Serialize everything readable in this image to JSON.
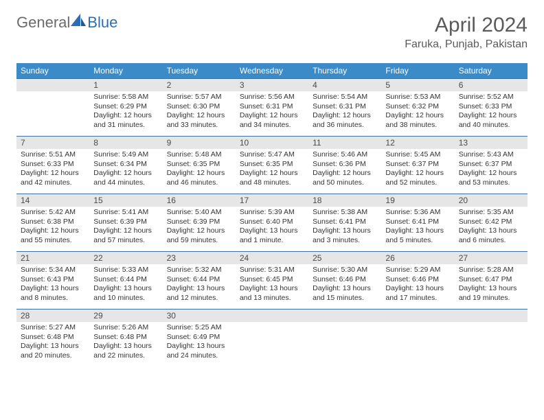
{
  "brand": {
    "word1": "General",
    "word2": "Blue"
  },
  "title": "April 2024",
  "location": "Faruka, Punjab, Pakistan",
  "colors": {
    "header_bg": "#3b8bc9",
    "header_text": "#ffffff",
    "daynum_bg": "#e6e6e6",
    "row_border": "#3b6fa0",
    "brand_gray": "#6b6b6b",
    "brand_blue": "#2a6fb5"
  },
  "weekdays": [
    "Sunday",
    "Monday",
    "Tuesday",
    "Wednesday",
    "Thursday",
    "Friday",
    "Saturday"
  ],
  "weeks": [
    [
      {
        "n": "",
        "sr": "",
        "ss": "",
        "dl": ""
      },
      {
        "n": "1",
        "sr": "Sunrise: 5:58 AM",
        "ss": "Sunset: 6:29 PM",
        "dl": "Daylight: 12 hours and 31 minutes."
      },
      {
        "n": "2",
        "sr": "Sunrise: 5:57 AM",
        "ss": "Sunset: 6:30 PM",
        "dl": "Daylight: 12 hours and 33 minutes."
      },
      {
        "n": "3",
        "sr": "Sunrise: 5:56 AM",
        "ss": "Sunset: 6:31 PM",
        "dl": "Daylight: 12 hours and 34 minutes."
      },
      {
        "n": "4",
        "sr": "Sunrise: 5:54 AM",
        "ss": "Sunset: 6:31 PM",
        "dl": "Daylight: 12 hours and 36 minutes."
      },
      {
        "n": "5",
        "sr": "Sunrise: 5:53 AM",
        "ss": "Sunset: 6:32 PM",
        "dl": "Daylight: 12 hours and 38 minutes."
      },
      {
        "n": "6",
        "sr": "Sunrise: 5:52 AM",
        "ss": "Sunset: 6:33 PM",
        "dl": "Daylight: 12 hours and 40 minutes."
      }
    ],
    [
      {
        "n": "7",
        "sr": "Sunrise: 5:51 AM",
        "ss": "Sunset: 6:33 PM",
        "dl": "Daylight: 12 hours and 42 minutes."
      },
      {
        "n": "8",
        "sr": "Sunrise: 5:49 AM",
        "ss": "Sunset: 6:34 PM",
        "dl": "Daylight: 12 hours and 44 minutes."
      },
      {
        "n": "9",
        "sr": "Sunrise: 5:48 AM",
        "ss": "Sunset: 6:35 PM",
        "dl": "Daylight: 12 hours and 46 minutes."
      },
      {
        "n": "10",
        "sr": "Sunrise: 5:47 AM",
        "ss": "Sunset: 6:35 PM",
        "dl": "Daylight: 12 hours and 48 minutes."
      },
      {
        "n": "11",
        "sr": "Sunrise: 5:46 AM",
        "ss": "Sunset: 6:36 PM",
        "dl": "Daylight: 12 hours and 50 minutes."
      },
      {
        "n": "12",
        "sr": "Sunrise: 5:45 AM",
        "ss": "Sunset: 6:37 PM",
        "dl": "Daylight: 12 hours and 52 minutes."
      },
      {
        "n": "13",
        "sr": "Sunrise: 5:43 AM",
        "ss": "Sunset: 6:37 PM",
        "dl": "Daylight: 12 hours and 53 minutes."
      }
    ],
    [
      {
        "n": "14",
        "sr": "Sunrise: 5:42 AM",
        "ss": "Sunset: 6:38 PM",
        "dl": "Daylight: 12 hours and 55 minutes."
      },
      {
        "n": "15",
        "sr": "Sunrise: 5:41 AM",
        "ss": "Sunset: 6:39 PM",
        "dl": "Daylight: 12 hours and 57 minutes."
      },
      {
        "n": "16",
        "sr": "Sunrise: 5:40 AM",
        "ss": "Sunset: 6:39 PM",
        "dl": "Daylight: 12 hours and 59 minutes."
      },
      {
        "n": "17",
        "sr": "Sunrise: 5:39 AM",
        "ss": "Sunset: 6:40 PM",
        "dl": "Daylight: 13 hours and 1 minute."
      },
      {
        "n": "18",
        "sr": "Sunrise: 5:38 AM",
        "ss": "Sunset: 6:41 PM",
        "dl": "Daylight: 13 hours and 3 minutes."
      },
      {
        "n": "19",
        "sr": "Sunrise: 5:36 AM",
        "ss": "Sunset: 6:41 PM",
        "dl": "Daylight: 13 hours and 5 minutes."
      },
      {
        "n": "20",
        "sr": "Sunrise: 5:35 AM",
        "ss": "Sunset: 6:42 PM",
        "dl": "Daylight: 13 hours and 6 minutes."
      }
    ],
    [
      {
        "n": "21",
        "sr": "Sunrise: 5:34 AM",
        "ss": "Sunset: 6:43 PM",
        "dl": "Daylight: 13 hours and 8 minutes."
      },
      {
        "n": "22",
        "sr": "Sunrise: 5:33 AM",
        "ss": "Sunset: 6:44 PM",
        "dl": "Daylight: 13 hours and 10 minutes."
      },
      {
        "n": "23",
        "sr": "Sunrise: 5:32 AM",
        "ss": "Sunset: 6:44 PM",
        "dl": "Daylight: 13 hours and 12 minutes."
      },
      {
        "n": "24",
        "sr": "Sunrise: 5:31 AM",
        "ss": "Sunset: 6:45 PM",
        "dl": "Daylight: 13 hours and 13 minutes."
      },
      {
        "n": "25",
        "sr": "Sunrise: 5:30 AM",
        "ss": "Sunset: 6:46 PM",
        "dl": "Daylight: 13 hours and 15 minutes."
      },
      {
        "n": "26",
        "sr": "Sunrise: 5:29 AM",
        "ss": "Sunset: 6:46 PM",
        "dl": "Daylight: 13 hours and 17 minutes."
      },
      {
        "n": "27",
        "sr": "Sunrise: 5:28 AM",
        "ss": "Sunset: 6:47 PM",
        "dl": "Daylight: 13 hours and 19 minutes."
      }
    ],
    [
      {
        "n": "28",
        "sr": "Sunrise: 5:27 AM",
        "ss": "Sunset: 6:48 PM",
        "dl": "Daylight: 13 hours and 20 minutes."
      },
      {
        "n": "29",
        "sr": "Sunrise: 5:26 AM",
        "ss": "Sunset: 6:48 PM",
        "dl": "Daylight: 13 hours and 22 minutes."
      },
      {
        "n": "30",
        "sr": "Sunrise: 5:25 AM",
        "ss": "Sunset: 6:49 PM",
        "dl": "Daylight: 13 hours and 24 minutes."
      },
      {
        "n": "",
        "sr": "",
        "ss": "",
        "dl": ""
      },
      {
        "n": "",
        "sr": "",
        "ss": "",
        "dl": ""
      },
      {
        "n": "",
        "sr": "",
        "ss": "",
        "dl": ""
      },
      {
        "n": "",
        "sr": "",
        "ss": "",
        "dl": ""
      }
    ]
  ]
}
